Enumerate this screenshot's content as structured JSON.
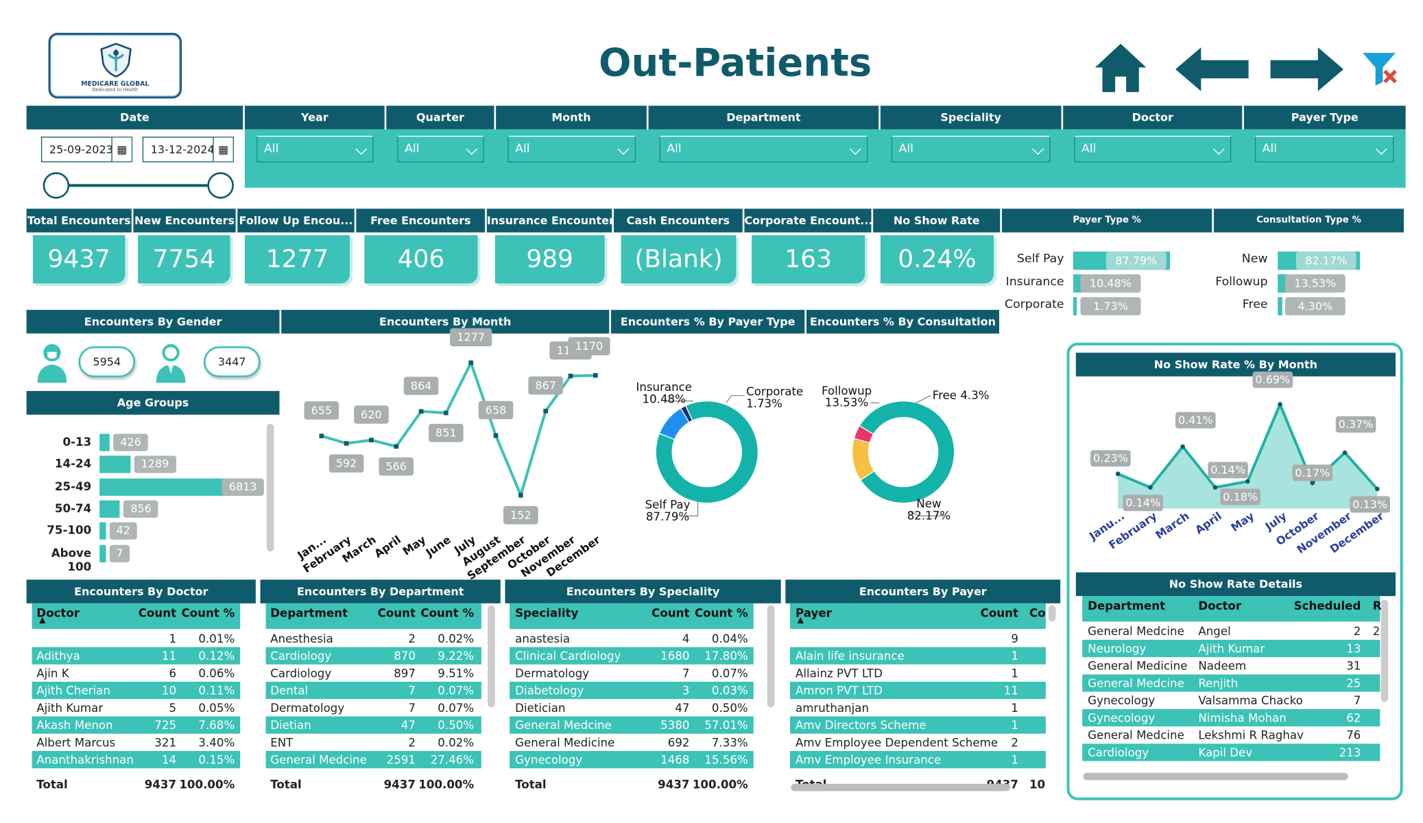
{
  "title": "Out-Patients",
  "logo": {
    "name": "MEDICARE GLOBAL",
    "tagline": "Dedicated to Health"
  },
  "filters": {
    "date": {
      "label": "Date",
      "start": "25-09-2023",
      "end": "13-12-2024"
    },
    "year": {
      "label": "Year",
      "value": "All"
    },
    "quarter": {
      "label": "Quarter",
      "value": "All"
    },
    "month": {
      "label": "Month",
      "value": "All"
    },
    "department": {
      "label": "Department",
      "value": "All"
    },
    "speciality": {
      "label": "Speciality",
      "value": "All"
    },
    "doctor": {
      "label": "Doctor",
      "value": "All"
    },
    "payer_type": {
      "label": "Payer Type",
      "value": "All"
    }
  },
  "kpis": [
    {
      "label": "Total Encounters",
      "value": "9437"
    },
    {
      "label": "New Encounters",
      "value": "7754"
    },
    {
      "label": "Follow Up Encou...",
      "value": "1277"
    },
    {
      "label": "Free Encounters",
      "value": "406"
    },
    {
      "label": "Insurance Encounters",
      "value": "989"
    },
    {
      "label": "Cash Encounters",
      "value": "(Blank)"
    },
    {
      "label": "Corporate Encount...",
      "value": "163"
    },
    {
      "label": "No Show Rate",
      "value": "0.24%"
    }
  ],
  "payer_type_pct": {
    "title": "Payer Type %",
    "items": [
      {
        "label": "Self Pay",
        "value": 87.79,
        "text": "87.79%"
      },
      {
        "label": "Insurance",
        "value": 10.48,
        "text": "10.48%"
      },
      {
        "label": "Corporate",
        "value": 1.73,
        "text": "1.73%"
      }
    ]
  },
  "consultation_type_pct": {
    "title": "Consultation Type %",
    "items": [
      {
        "label": "New",
        "value": 82.17,
        "text": "82.17%"
      },
      {
        "label": "Followup",
        "value": 13.53,
        "text": "13.53%"
      },
      {
        "label": "Free",
        "value": 4.3,
        "text": "4.30%"
      }
    ]
  },
  "gender": {
    "title": "Encounters By Gender",
    "female": "5954",
    "male": "3447"
  },
  "age_groups": {
    "title": "Age Groups",
    "items": [
      {
        "label": "0-13",
        "value": 426
      },
      {
        "label": "14-24",
        "value": 1289
      },
      {
        "label": "25-49",
        "value": 6813
      },
      {
        "label": "50-74",
        "value": 856
      },
      {
        "label": "75-100",
        "value": 42
      },
      {
        "label": "Above 100",
        "value": 7
      }
    ]
  },
  "chart_data": [
    {
      "type": "line",
      "title": "Encounters By Month",
      "categories": [
        "Jan...",
        "February",
        "March",
        "April",
        "May",
        "June",
        "July",
        "August",
        "September",
        "October",
        "November",
        "December"
      ],
      "values": [
        655,
        592,
        620,
        566,
        864,
        851,
        1277,
        658,
        152,
        867,
        1165,
        1170
      ]
    },
    {
      "type": "pie",
      "title": "Encounters % By Payer Type",
      "slices": [
        {
          "label": "Self Pay",
          "value": 87.79,
          "text": "87.79%",
          "color": "#14b3aa"
        },
        {
          "label": "Insurance",
          "value": 10.48,
          "text": "10.48%",
          "color": "#1f8ff0"
        },
        {
          "label": "Corporate",
          "value": 1.73,
          "text": "1.73%",
          "color": "#14307a"
        }
      ]
    },
    {
      "type": "pie",
      "title": "Encounters % By Consultation",
      "slices": [
        {
          "label": "New",
          "value": 82.17,
          "text": "82.17%",
          "color": "#14b3aa"
        },
        {
          "label": "Followup",
          "value": 13.53,
          "text": "13.53%",
          "color": "#f6c040"
        },
        {
          "label": "Free",
          "value": 4.3,
          "text": "4.3%",
          "color": "#e8356a"
        }
      ]
    },
    {
      "type": "area",
      "title": "No Show Rate % By Month",
      "categories": [
        "Janu...",
        "February",
        "March",
        "April",
        "May",
        "July",
        "October",
        "November",
        "December"
      ],
      "values": [
        0.23,
        0.14,
        0.41,
        0.14,
        0.18,
        0.69,
        0.17,
        0.37,
        0.13
      ],
      "labels": [
        "0.23%",
        "0.14%",
        "0.41%",
        "0.14%",
        "0.18%",
        "0.69%",
        "0.17%",
        "0.37%",
        "0.13%"
      ]
    }
  ],
  "tables": {
    "doctor": {
      "title": "Encounters By Doctor",
      "columns": [
        "Doctor",
        "Count",
        "Count %"
      ],
      "rows": [
        [
          "",
          "1",
          "0.01%"
        ],
        [
          "Adithya",
          "11",
          "0.12%"
        ],
        [
          "Ajin K",
          "6",
          "0.06%"
        ],
        [
          "Ajith Cherian",
          "10",
          "0.11%"
        ],
        [
          "Ajith Kumar",
          "5",
          "0.05%"
        ],
        [
          "Akash Menon",
          "725",
          "7.68%"
        ],
        [
          "Albert Marcus",
          "321",
          "3.40%"
        ],
        [
          "Ananthakrishnan",
          "14",
          "0.15%"
        ]
      ],
      "total": [
        "Total",
        "9437",
        "100.00%"
      ]
    },
    "department": {
      "title": "Encounters By Department",
      "columns": [
        "Department",
        "Count",
        "Count %"
      ],
      "rows": [
        [
          "Anesthesia",
          "2",
          "0.02%"
        ],
        [
          "Cardiology",
          "870",
          "9.22%"
        ],
        [
          "Cardiology",
          "897",
          "9.51%"
        ],
        [
          "Dental",
          "7",
          "0.07%"
        ],
        [
          "Dermatology",
          "7",
          "0.07%"
        ],
        [
          "Dietian",
          "47",
          "0.50%"
        ],
        [
          "ENT",
          "2",
          "0.02%"
        ],
        [
          "General Medcine",
          "2591",
          "27.46%"
        ]
      ],
      "total": [
        "Total",
        "9437",
        "100.00%"
      ]
    },
    "speciality": {
      "title": "Encounters By Speciality",
      "columns": [
        "Speciality",
        "Count",
        "Count %"
      ],
      "rows": [
        [
          "anastesia",
          "4",
          "0.04%"
        ],
        [
          "Clinical Cardiology",
          "1680",
          "17.80%"
        ],
        [
          "Dermatology",
          "7",
          "0.07%"
        ],
        [
          "Diabetology",
          "3",
          "0.03%"
        ],
        [
          "Dietician",
          "47",
          "0.50%"
        ],
        [
          "General Medcine",
          "5380",
          "57.01%"
        ],
        [
          "General Medicine",
          "692",
          "7.33%"
        ],
        [
          "Gynecology",
          "1468",
          "15.56%"
        ]
      ],
      "total": [
        "Total",
        "9437",
        "100.00%"
      ]
    },
    "payer": {
      "title": "Encounters By Payer",
      "columns": [
        "Payer",
        "Count",
        "Co"
      ],
      "rows": [
        [
          "",
          "9",
          ""
        ],
        [
          "Alain life insurance",
          "1",
          ""
        ],
        [
          "Allainz PVT LTD",
          "1",
          ""
        ],
        [
          "Amron PVT LTD",
          "11",
          ""
        ],
        [
          "amruthanjan",
          "1",
          ""
        ],
        [
          "Amv Directors Scheme",
          "1",
          ""
        ],
        [
          "Amv Employee Dependent Scheme",
          "2",
          ""
        ],
        [
          "Amv Employee Insurance",
          "1",
          ""
        ]
      ],
      "total": [
        "Total",
        "9437",
        "10"
      ]
    },
    "no_show": {
      "title": "No Show Rate Details",
      "columns": [
        "Department",
        "Doctor",
        "Scheduled",
        "R"
      ],
      "rows": [
        [
          "General Medcine",
          "Angel",
          "2",
          "2"
        ],
        [
          "Neurology",
          "Ajith Kumar",
          "13",
          ""
        ],
        [
          "General Medicine",
          "Nadeem",
          "31",
          ""
        ],
        [
          "General Medcine",
          "Renjith",
          "25",
          ""
        ],
        [
          "Gynecology",
          "Valsamma Chacko",
          "7",
          ""
        ],
        [
          "Gynecology",
          "Nimisha Mohan",
          "62",
          ""
        ],
        [
          "General Medcine",
          "Lekshmi R Raghav",
          "76",
          ""
        ],
        [
          "Cardiology",
          "Kapil Dev",
          "213",
          ""
        ]
      ]
    }
  }
}
